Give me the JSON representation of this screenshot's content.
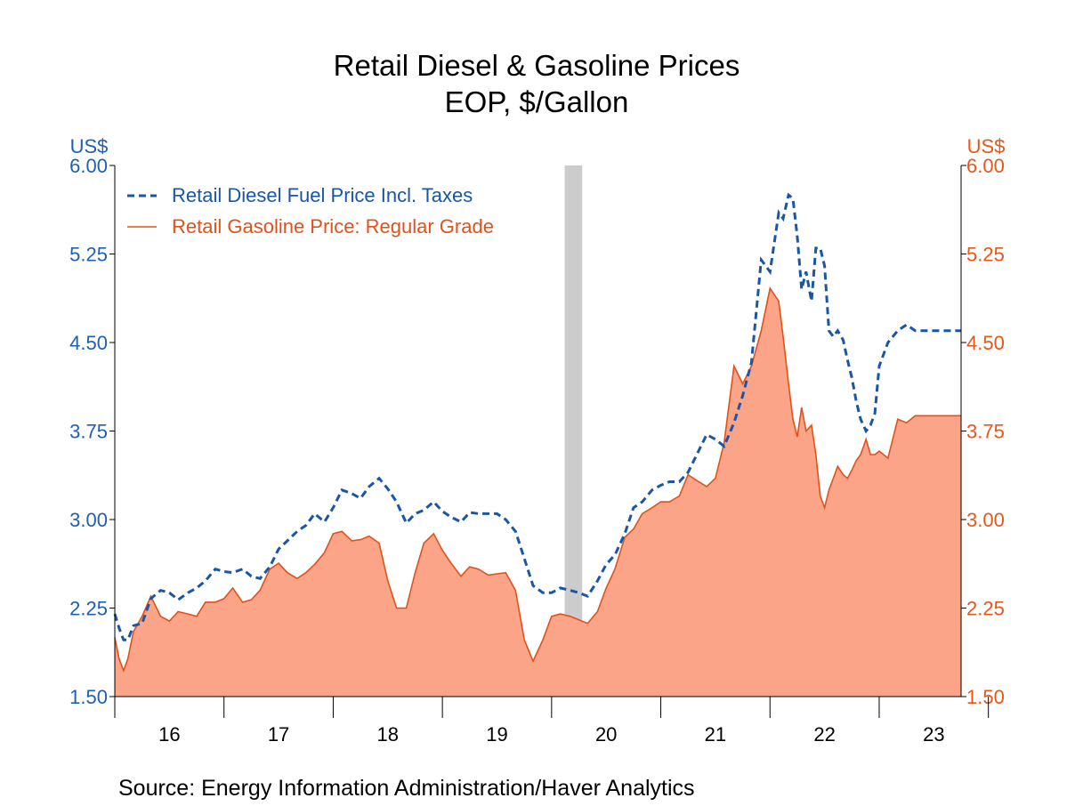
{
  "colors": {
    "diesel": "#1a56a6",
    "gasoline_line": "#e0521c",
    "gasoline_fill": "#fca487",
    "recession": "#cccccc",
    "left_axis": "#1f5fb5",
    "right_axis": "#e8561a"
  },
  "chart_data": {
    "type": "area",
    "title": "Retail Diesel & Gasoline Prices",
    "subtitle": "EOP, $/Gallon",
    "ylabel_left": "US$",
    "ylabel_right": "US$",
    "ylim": [
      1.5,
      6.0
    ],
    "yticks": [
      "6.00",
      "5.25",
      "4.50",
      "3.75",
      "3.00",
      "2.25",
      "1.50"
    ],
    "xlim": [
      2016.0,
      2023.75
    ],
    "xtick_labels": [
      "16",
      "17",
      "18",
      "19",
      "20",
      "21",
      "22",
      "23"
    ],
    "recession": [
      2020.12,
      2020.28
    ],
    "source": "Source:  Energy Information Administration/Haver Analytics",
    "legend_position": "top-left",
    "series": [
      {
        "name": "Retail Diesel Fuel Price Incl. Taxes",
        "style": "dashed",
        "x": [
          2016.0,
          2016.04,
          2016.08,
          2016.12,
          2016.17,
          2016.25,
          2016.33,
          2016.42,
          2016.5,
          2016.58,
          2016.67,
          2016.75,
          2016.83,
          2016.92,
          2017.0,
          2017.08,
          2017.17,
          2017.25,
          2017.33,
          2017.42,
          2017.5,
          2017.58,
          2017.67,
          2017.75,
          2017.83,
          2017.92,
          2018.0,
          2018.08,
          2018.17,
          2018.25,
          2018.33,
          2018.42,
          2018.5,
          2018.58,
          2018.67,
          2018.75,
          2018.83,
          2018.92,
          2019.0,
          2019.08,
          2019.17,
          2019.25,
          2019.33,
          2019.42,
          2019.5,
          2019.58,
          2019.67,
          2019.75,
          2019.83,
          2019.92,
          2020.0,
          2020.08,
          2020.17,
          2020.25,
          2020.33,
          2020.42,
          2020.5,
          2020.58,
          2020.67,
          2020.75,
          2020.83,
          2020.92,
          2021.0,
          2021.08,
          2021.17,
          2021.25,
          2021.33,
          2021.42,
          2021.5,
          2021.58,
          2021.67,
          2021.75,
          2021.83,
          2021.92,
          2022.0,
          2022.08,
          2022.12,
          2022.17,
          2022.21,
          2022.25,
          2022.29,
          2022.33,
          2022.38,
          2022.42,
          2022.46,
          2022.5,
          2022.54,
          2022.58,
          2022.62,
          2022.67,
          2022.71,
          2022.75,
          2022.79,
          2022.83,
          2022.88,
          2022.92,
          2022.96,
          2023.0,
          2023.08,
          2023.17,
          2023.25,
          2023.33,
          2023.42,
          2023.5,
          2023.58,
          2023.67,
          2023.75
        ],
        "values": [
          2.2,
          2.08,
          1.98,
          1.98,
          2.1,
          2.12,
          2.33,
          2.4,
          2.38,
          2.32,
          2.38,
          2.42,
          2.48,
          2.58,
          2.56,
          2.55,
          2.58,
          2.52,
          2.5,
          2.6,
          2.75,
          2.82,
          2.9,
          2.95,
          3.05,
          2.98,
          3.1,
          3.25,
          3.22,
          3.18,
          3.28,
          3.35,
          3.26,
          3.15,
          2.97,
          3.05,
          3.08,
          3.15,
          3.07,
          3.02,
          2.98,
          3.06,
          3.05,
          3.05,
          3.05,
          3.0,
          2.9,
          2.67,
          2.44,
          2.38,
          2.38,
          2.42,
          2.4,
          2.38,
          2.35,
          2.48,
          2.62,
          2.7,
          2.88,
          3.1,
          3.15,
          3.25,
          3.29,
          3.32,
          3.32,
          3.4,
          3.55,
          3.72,
          3.68,
          3.62,
          3.82,
          4.05,
          4.33,
          5.2,
          5.1,
          5.6,
          5.55,
          5.75,
          5.72,
          5.4,
          4.95,
          5.1,
          4.85,
          5.3,
          5.3,
          5.15,
          4.6,
          4.55,
          4.6,
          4.52,
          4.35,
          4.2,
          4.0,
          3.85,
          3.75,
          3.8,
          3.9,
          4.3,
          4.5,
          4.6,
          4.65,
          4.6,
          4.6,
          4.6,
          4.6,
          4.6,
          4.6
        ]
      },
      {
        "name": "Retail Gasoline Price: Regular Grade",
        "style": "area",
        "x": [
          2016.0,
          2016.04,
          2016.08,
          2016.12,
          2016.17,
          2016.25,
          2016.33,
          2016.42,
          2016.5,
          2016.58,
          2016.67,
          2016.75,
          2016.83,
          2016.92,
          2017.0,
          2017.08,
          2017.17,
          2017.25,
          2017.33,
          2017.42,
          2017.5,
          2017.58,
          2017.67,
          2017.75,
          2017.83,
          2017.92,
          2018.0,
          2018.08,
          2018.17,
          2018.25,
          2018.33,
          2018.42,
          2018.5,
          2018.58,
          2018.67,
          2018.75,
          2018.83,
          2018.92,
          2019.0,
          2019.08,
          2019.17,
          2019.25,
          2019.33,
          2019.42,
          2019.5,
          2019.58,
          2019.67,
          2019.75,
          2019.83,
          2019.92,
          2020.0,
          2020.08,
          2020.17,
          2020.25,
          2020.33,
          2020.42,
          2020.5,
          2020.58,
          2020.67,
          2020.75,
          2020.83,
          2020.92,
          2021.0,
          2021.08,
          2021.17,
          2021.25,
          2021.33,
          2021.42,
          2021.5,
          2021.58,
          2021.67,
          2021.75,
          2021.83,
          2021.92,
          2022.0,
          2022.08,
          2022.12,
          2022.17,
          2022.21,
          2022.25,
          2022.29,
          2022.33,
          2022.38,
          2022.42,
          2022.46,
          2022.5,
          2022.54,
          2022.58,
          2022.62,
          2022.67,
          2022.71,
          2022.75,
          2022.79,
          2022.83,
          2022.88,
          2022.92,
          2022.96,
          2023.0,
          2023.08,
          2023.17,
          2023.25,
          2023.33,
          2023.42,
          2023.5,
          2023.58,
          2023.67,
          2023.75
        ],
        "values": [
          2.0,
          1.82,
          1.72,
          1.82,
          2.05,
          2.18,
          2.35,
          2.18,
          2.14,
          2.22,
          2.2,
          2.18,
          2.3,
          2.3,
          2.33,
          2.42,
          2.3,
          2.32,
          2.4,
          2.58,
          2.63,
          2.55,
          2.5,
          2.55,
          2.62,
          2.72,
          2.88,
          2.9,
          2.82,
          2.83,
          2.86,
          2.8,
          2.48,
          2.25,
          2.25,
          2.55,
          2.8,
          2.88,
          2.74,
          2.63,
          2.52,
          2.6,
          2.58,
          2.53,
          2.54,
          2.55,
          2.4,
          1.98,
          1.8,
          1.98,
          2.18,
          2.2,
          2.18,
          2.15,
          2.12,
          2.22,
          2.42,
          2.58,
          2.85,
          2.92,
          3.05,
          3.1,
          3.15,
          3.15,
          3.2,
          3.38,
          3.33,
          3.28,
          3.35,
          3.65,
          4.3,
          4.15,
          4.3,
          4.6,
          4.96,
          4.85,
          4.55,
          4.15,
          3.85,
          3.7,
          3.95,
          3.75,
          3.8,
          3.55,
          3.2,
          3.1,
          3.25,
          3.35,
          3.45,
          3.38,
          3.35,
          3.42,
          3.5,
          3.55,
          3.68,
          3.55,
          3.55,
          3.58,
          3.52,
          3.85,
          3.82,
          3.88,
          3.88,
          3.88,
          3.88,
          3.88,
          3.88
        ]
      }
    ]
  }
}
